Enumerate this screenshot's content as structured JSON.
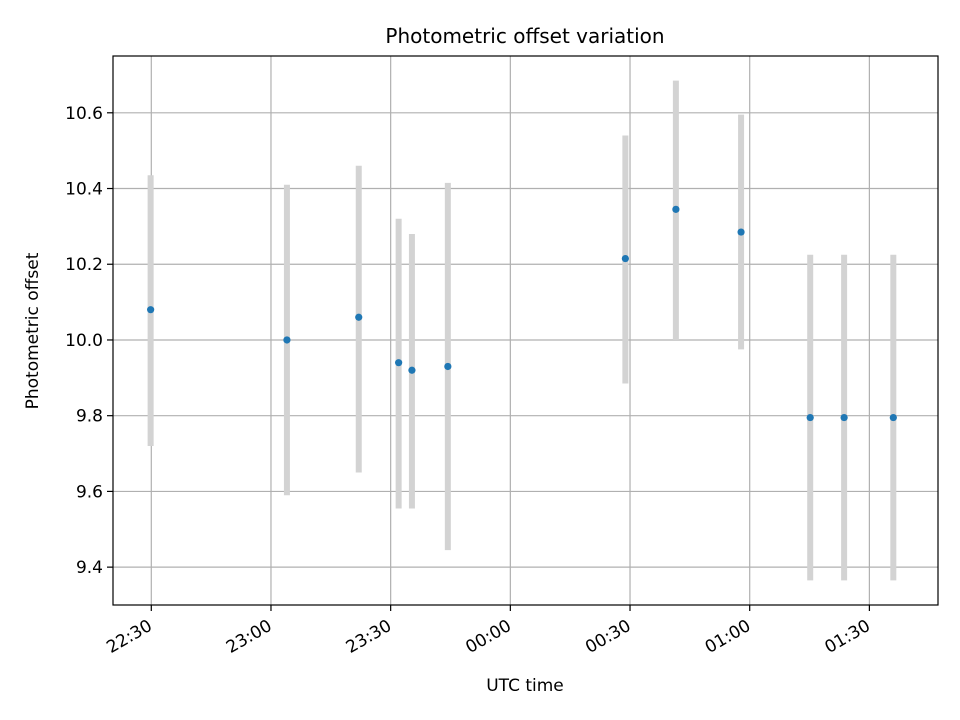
{
  "chart_data": {
    "type": "scatter",
    "title": "Photometric offset variation",
    "xlabel": "UTC time",
    "ylabel": "Photometric offset",
    "x_unit": "UTC time (HH:MM, crossing midnight)",
    "xlim": [
      "22:20:24",
      "01:47:12"
    ],
    "ylim": [
      9.3,
      10.75
    ],
    "xticks": [
      "22:30",
      "23:00",
      "23:30",
      "00:00",
      "00:30",
      "01:00",
      "01:30"
    ],
    "yticks": [
      "9.4",
      "9.6",
      "9.8",
      "10.0",
      "10.2",
      "10.4",
      "10.6"
    ],
    "grid": true,
    "points": [
      {
        "x": "22:29:50",
        "y": 10.08,
        "low": 9.72,
        "high": 10.435
      },
      {
        "x": "23:04:00",
        "y": 10.0,
        "low": 9.59,
        "high": 10.41
      },
      {
        "x": "23:22:00",
        "y": 10.06,
        "low": 9.65,
        "high": 10.46
      },
      {
        "x": "23:32:00",
        "y": 9.94,
        "low": 9.555,
        "high": 10.32
      },
      {
        "x": "23:35:20",
        "y": 9.92,
        "low": 9.555,
        "high": 10.28
      },
      {
        "x": "23:44:20",
        "y": 9.93,
        "low": 9.445,
        "high": 10.415
      },
      {
        "x": "00:28:50",
        "y": 10.215,
        "low": 9.885,
        "high": 10.54
      },
      {
        "x": "00:41:30",
        "y": 10.345,
        "low": 10.0,
        "high": 10.685
      },
      {
        "x": "00:57:50",
        "y": 10.285,
        "low": 9.975,
        "high": 10.595
      },
      {
        "x": "01:15:10",
        "y": 9.795,
        "low": 9.365,
        "high": 10.225
      },
      {
        "x": "01:23:40",
        "y": 9.795,
        "low": 9.365,
        "high": 10.225
      },
      {
        "x": "01:36:00",
        "y": 9.795,
        "low": 9.365,
        "high": 10.225
      }
    ],
    "colors": {
      "point": "#1f77b4",
      "errorbar": "#d3d3d3",
      "grid": "#b0b0b0",
      "axes": "#000000"
    }
  }
}
